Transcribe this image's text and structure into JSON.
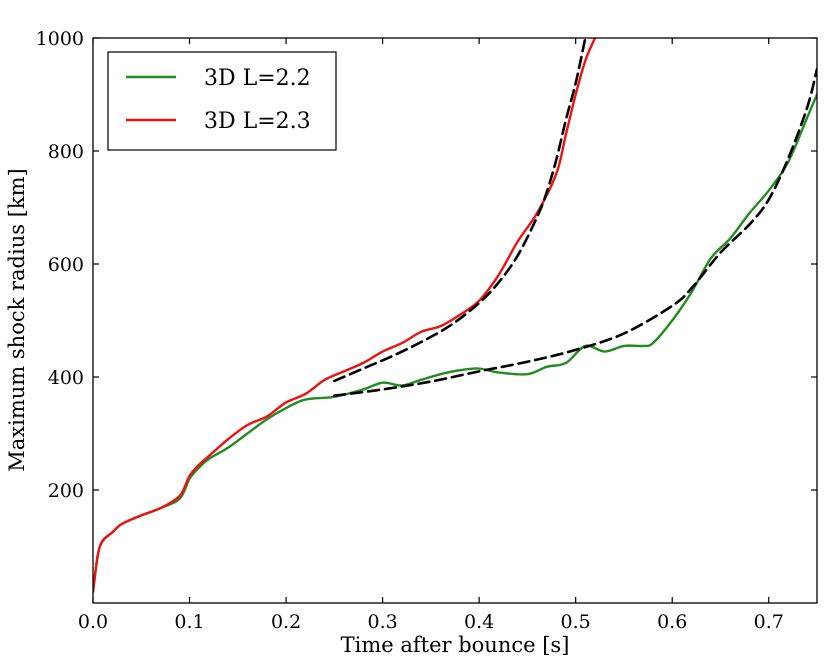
{
  "chart_data": {
    "type": "line",
    "title": "",
    "xlabel": "Time after bounce [s]",
    "ylabel": "Maximum shock radius [km]",
    "xlim": [
      0.0,
      0.75
    ],
    "ylim": [
      0,
      1000
    ],
    "xticks": [
      0.0,
      0.1,
      0.2,
      0.3,
      0.4,
      0.5,
      0.6,
      0.7
    ],
    "xtick_labels": [
      "0.0",
      "0.1",
      "0.2",
      "0.3",
      "0.4",
      "0.5",
      "0.6",
      "0.7"
    ],
    "yticks": [
      200,
      400,
      600,
      800,
      1000
    ],
    "ytick_labels": [
      "200",
      "400",
      "600",
      "800",
      "1000"
    ],
    "grid": false,
    "legend_position": "top-left",
    "series": [
      {
        "name": "3D L=2.2",
        "color": "#228B22",
        "style": "solid",
        "x": [
          0.0,
          0.005,
          0.01,
          0.02,
          0.03,
          0.05,
          0.07,
          0.09,
          0.1,
          0.11,
          0.12,
          0.14,
          0.16,
          0.18,
          0.2,
          0.22,
          0.25,
          0.28,
          0.3,
          0.32,
          0.34,
          0.36,
          0.38,
          0.4,
          0.42,
          0.45,
          0.47,
          0.49,
          0.51,
          0.53,
          0.55,
          0.57,
          0.58,
          0.6,
          0.62,
          0.64,
          0.66,
          0.68,
          0.7,
          0.72,
          0.74,
          0.75
        ],
        "y": [
          20,
          85,
          110,
          125,
          140,
          155,
          168,
          185,
          220,
          240,
          255,
          275,
          300,
          325,
          345,
          360,
          365,
          378,
          390,
          385,
          395,
          405,
          412,
          415,
          408,
          405,
          418,
          425,
          455,
          445,
          455,
          455,
          460,
          500,
          550,
          610,
          645,
          690,
          730,
          780,
          860,
          900
        ]
      },
      {
        "name": "3D L=2.3",
        "color": "#EE1111",
        "style": "solid",
        "x": [
          0.0,
          0.005,
          0.01,
          0.02,
          0.03,
          0.05,
          0.07,
          0.09,
          0.1,
          0.11,
          0.12,
          0.14,
          0.16,
          0.18,
          0.2,
          0.22,
          0.24,
          0.26,
          0.28,
          0.3,
          0.32,
          0.34,
          0.36,
          0.38,
          0.4,
          0.42,
          0.44,
          0.46,
          0.48,
          0.49,
          0.5,
          0.51,
          0.52
        ],
        "y": [
          20,
          85,
          110,
          125,
          140,
          155,
          168,
          190,
          225,
          245,
          260,
          290,
          315,
          330,
          355,
          370,
          395,
          410,
          425,
          445,
          460,
          480,
          490,
          510,
          535,
          580,
          640,
          690,
          760,
          830,
          900,
          960,
          1000
        ]
      },
      {
        "name": "",
        "color": "#000000",
        "style": "dashed",
        "x": [
          0.25,
          0.28,
          0.31,
          0.34,
          0.37,
          0.4,
          0.42,
          0.44,
          0.46,
          0.47,
          0.48,
          0.49,
          0.5,
          0.51
        ],
        "y": [
          393,
          415,
          437,
          462,
          491,
          531,
          567,
          615,
          683,
          727,
          785,
          856,
          920,
          1000
        ]
      },
      {
        "name": "",
        "color": "#000000",
        "style": "dashed",
        "x": [
          0.25,
          0.3,
          0.35,
          0.4,
          0.45,
          0.5,
          0.55,
          0.6,
          0.62,
          0.65,
          0.68,
          0.7,
          0.72,
          0.74,
          0.75
        ],
        "y": [
          367,
          378,
          392,
          410,
          427,
          448,
          477,
          526,
          557,
          620,
          670,
          714,
          786,
          878,
          945
        ]
      }
    ]
  }
}
